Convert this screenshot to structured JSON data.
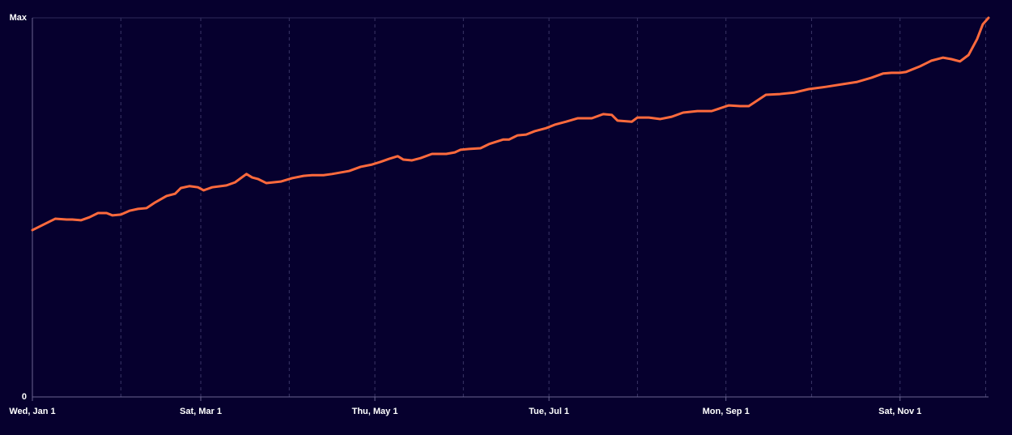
{
  "chart_data": {
    "type": "line",
    "x": [
      0,
      4,
      8,
      12,
      14,
      17,
      20,
      23,
      26,
      28,
      31,
      34,
      37,
      40,
      43,
      47,
      50,
      52,
      55,
      58,
      60,
      63,
      68,
      71,
      75,
      77,
      79,
      82,
      87,
      91,
      95,
      98,
      102,
      105,
      111,
      115,
      119,
      122,
      125,
      128,
      130,
      133,
      136,
      140,
      145,
      148,
      150,
      153,
      157,
      160,
      165,
      167,
      170,
      173,
      176,
      180,
      183,
      187,
      191,
      196,
      200,
      203,
      205,
      210,
      212,
      216,
      220,
      224,
      228,
      233,
      238,
      244,
      248,
      251,
      257,
      262,
      267,
      272,
      278,
      284,
      289,
      294,
      298,
      301,
      304,
      306,
      311,
      315,
      319,
      322,
      325,
      328,
      331,
      333,
      335
    ],
    "series": [
      {
        "color": "#ff6a3d",
        "values": [
          44.0,
          45.5,
          47.0,
          46.8,
          46.8,
          46.6,
          47.4,
          48.5,
          48.5,
          47.9,
          48.1,
          49.1,
          49.6,
          49.8,
          51.3,
          53.0,
          53.6,
          55.1,
          55.6,
          55.3,
          54.5,
          55.3,
          55.8,
          56.6,
          58.8,
          57.9,
          57.5,
          56.4,
          56.8,
          57.7,
          58.3,
          58.5,
          58.5,
          58.8,
          59.6,
          60.7,
          61.3,
          62.0,
          62.8,
          63.5,
          62.6,
          62.4,
          63.0,
          64.1,
          64.1,
          64.5,
          65.2,
          65.4,
          65.6,
          66.7,
          67.9,
          67.9,
          69.0,
          69.2,
          70.1,
          70.9,
          71.8,
          72.6,
          73.5,
          73.5,
          74.6,
          74.4,
          72.9,
          72.6,
          73.7,
          73.7,
          73.3,
          73.9,
          75.0,
          75.4,
          75.4,
          76.9,
          76.7,
          76.7,
          79.7,
          79.9,
          80.3,
          81.2,
          81.8,
          82.5,
          83.1,
          84.2,
          85.3,
          85.5,
          85.5,
          85.7,
          87.2,
          88.7,
          89.5,
          89.1,
          88.5,
          90.2,
          94.4,
          98.3,
          100
        ]
      }
    ],
    "xlim": [
      0,
      335
    ],
    "xticks": [
      {
        "value": 0,
        "label": "Wed, Jan 1"
      },
      {
        "value": 59,
        "label": "Sat, Mar 1"
      },
      {
        "value": 120,
        "label": "Thu, May 1"
      },
      {
        "value": 181,
        "label": "Tue, Jul 1"
      },
      {
        "value": 243,
        "label": "Mon, Sep 1"
      },
      {
        "value": 304,
        "label": "Sat, Nov 1"
      }
    ],
    "xminor": [
      31,
      90,
      151,
      212,
      273,
      334
    ],
    "ylim": [
      0,
      100
    ],
    "yticks": [
      0,
      {
        "value": 100,
        "label": "Max"
      }
    ],
    "grid": true
  }
}
